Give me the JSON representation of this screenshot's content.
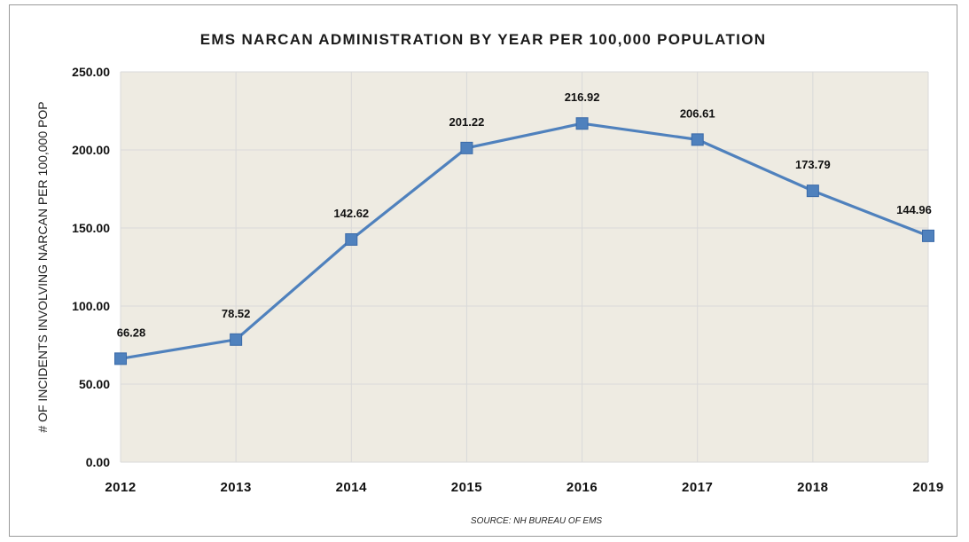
{
  "chart_data": {
    "type": "line",
    "title": "EMS NARCAN ADMINISTRATION BY YEAR PER 100,000 POPULATION",
    "ylabel": "# OF INCIDENTS INVOLVING NARCAN PER 100,000 POP",
    "xlabel": "",
    "source": "SOURCE: NH BUREAU OF EMS",
    "categories": [
      "2012",
      "2013",
      "2014",
      "2015",
      "2016",
      "2017",
      "2018",
      "2019"
    ],
    "series": [
      {
        "values": [
          66.28,
          78.52,
          142.62,
          201.22,
          216.92,
          206.61,
          173.79,
          144.96
        ],
        "labels": [
          "66.28",
          "78.52",
          "142.62",
          "201.22",
          "216.92",
          "206.61",
          "173.79",
          "144.96"
        ]
      }
    ],
    "ylim": [
      0,
      250
    ],
    "yticks": [
      "0.00",
      "50.00",
      "100.00",
      "150.00",
      "200.00",
      "250.00"
    ],
    "grid": true,
    "legend": "none",
    "colors": {
      "line": "#4f81bd",
      "marker": "#4f81bd",
      "plot_bg": "#eeebe2",
      "grid": "#d9d9d9"
    }
  }
}
